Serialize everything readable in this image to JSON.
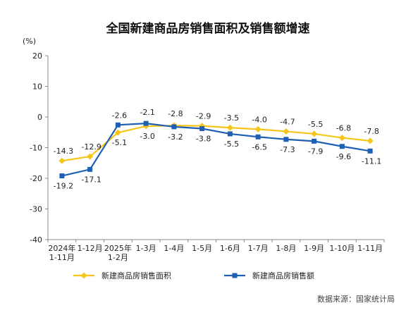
{
  "chart_data": {
    "type": "line",
    "title": "全国新建商品房销售面积及销售额增速",
    "unit": "(%)",
    "categories": [
      [
        "2024年",
        "1-11月"
      ],
      [
        "1-12月"
      ],
      [
        "2025年",
        "1-2月"
      ],
      [
        "1-3月"
      ],
      [
        "1-4月"
      ],
      [
        "1-5月"
      ],
      [
        "1-6月"
      ],
      [
        "1-7月"
      ],
      [
        "1-8月"
      ],
      [
        "1-9月"
      ],
      [
        "1-10月"
      ],
      [
        "1-11月"
      ]
    ],
    "ylim": [
      -40,
      20
    ],
    "yticks": [
      20,
      10,
      0,
      -10,
      -20,
      -30,
      -40
    ],
    "ytick_labels": [
      "20",
      "10",
      "0",
      "-10",
      "-20",
      "-30",
      "-40"
    ],
    "grid": false,
    "legend_position": "bottom",
    "series": [
      {
        "name": "新建商品房销售面积",
        "color": "#F5C518",
        "marker": "diamond",
        "values": [
          -14.3,
          -12.9,
          -5.1,
          -3.0,
          -2.8,
          -2.9,
          -3.5,
          -4.0,
          -4.7,
          -5.5,
          -6.8,
          -7.8
        ],
        "labels": [
          "-14.3",
          "-12.9",
          "-5.1",
          "-3.0",
          "-2.8",
          "-2.9",
          "-3.5",
          "-4.0",
          "-4.7",
          "-5.5",
          "-6.8",
          "-7.8"
        ]
      },
      {
        "name": "新建商品房销售额",
        "color": "#1F5FB4",
        "marker": "square",
        "values": [
          -19.2,
          -17.1,
          -2.6,
          -2.1,
          -3.2,
          -3.8,
          -5.5,
          -6.5,
          -7.3,
          -7.9,
          -9.6,
          -11.1
        ],
        "labels": [
          "-19.2",
          "-17.1",
          "-2.6",
          "-2.1",
          "-3.2",
          "-3.8",
          "-5.5",
          "-6.5",
          "-7.3",
          "-7.9",
          "-9.6",
          "-11.1"
        ]
      }
    ]
  },
  "source": "数据来源：国家统计局"
}
